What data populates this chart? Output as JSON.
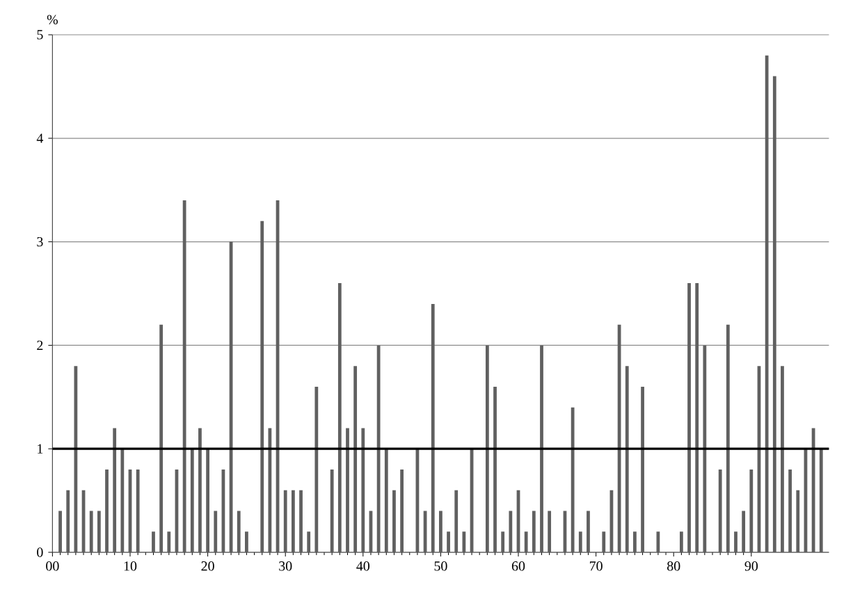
{
  "chart_data": {
    "type": "bar",
    "ylabel": "%",
    "x": [
      1,
      2,
      3,
      4,
      5,
      6,
      7,
      8,
      9,
      10,
      11,
      12,
      13,
      14,
      15,
      16,
      17,
      18,
      19,
      20,
      21,
      22,
      23,
      24,
      25,
      26,
      27,
      28,
      29,
      30,
      31,
      32,
      33,
      34,
      35,
      36,
      37,
      38,
      39,
      40,
      41,
      42,
      43,
      44,
      45,
      46,
      47,
      48,
      49,
      50,
      51,
      52,
      53,
      54,
      55,
      56,
      57,
      58,
      59,
      60,
      61,
      62,
      63,
      64,
      65,
      66,
      67,
      68,
      69,
      70,
      71,
      72,
      73,
      74,
      75,
      76,
      77,
      78,
      79,
      80,
      81,
      82,
      83,
      84,
      85,
      86,
      87,
      88,
      89,
      90,
      91,
      92,
      93,
      94,
      95,
      96,
      97,
      98,
      99
    ],
    "values": [
      0.4,
      0.6,
      1.8,
      0.6,
      0.4,
      0.4,
      0.8,
      1.2,
      1.0,
      0.8,
      0.8,
      null,
      0.2,
      2.2,
      0.2,
      0.8,
      3.4,
      1.0,
      1.2,
      1.0,
      0.4,
      0.8,
      3.0,
      0.4,
      0.2,
      null,
      3.2,
      1.2,
      3.4,
      0.6,
      0.6,
      0.6,
      0.2,
      1.6,
      null,
      0.8,
      2.6,
      1.2,
      1.8,
      1.2,
      0.4,
      2.0,
      1.0,
      0.6,
      0.8,
      null,
      1.0,
      0.4,
      2.4,
      0.4,
      0.2,
      0.6,
      0.2,
      1.0,
      null,
      2.0,
      1.6,
      0.2,
      0.4,
      0.6,
      0.2,
      0.4,
      2.0,
      0.4,
      null,
      0.4,
      1.4,
      0.2,
      0.4,
      null,
      0.2,
      0.6,
      2.2,
      1.8,
      0.2,
      1.6,
      null,
      0.2,
      null,
      null,
      0.2,
      2.6,
      2.6,
      2.0,
      null,
      0.8,
      2.2,
      0.2,
      0.4,
      0.8,
      1.8,
      4.8,
      4.6,
      1.8,
      0.8,
      0.6,
      1.0,
      1.2,
      1.0
    ],
    "color": "#606060",
    "xlim": [
      0,
      100
    ],
    "xticks": [
      {
        "value": 0,
        "label": "00"
      },
      10,
      20,
      30,
      40,
      50,
      60,
      70,
      80,
      90
    ],
    "ylim": [
      0,
      5
    ],
    "yticks": [
      0,
      1,
      2,
      3,
      4,
      5
    ],
    "grid": "y",
    "ref_lines": [
      {
        "axis": "y",
        "value": 1,
        "color": "#000000"
      }
    ]
  }
}
